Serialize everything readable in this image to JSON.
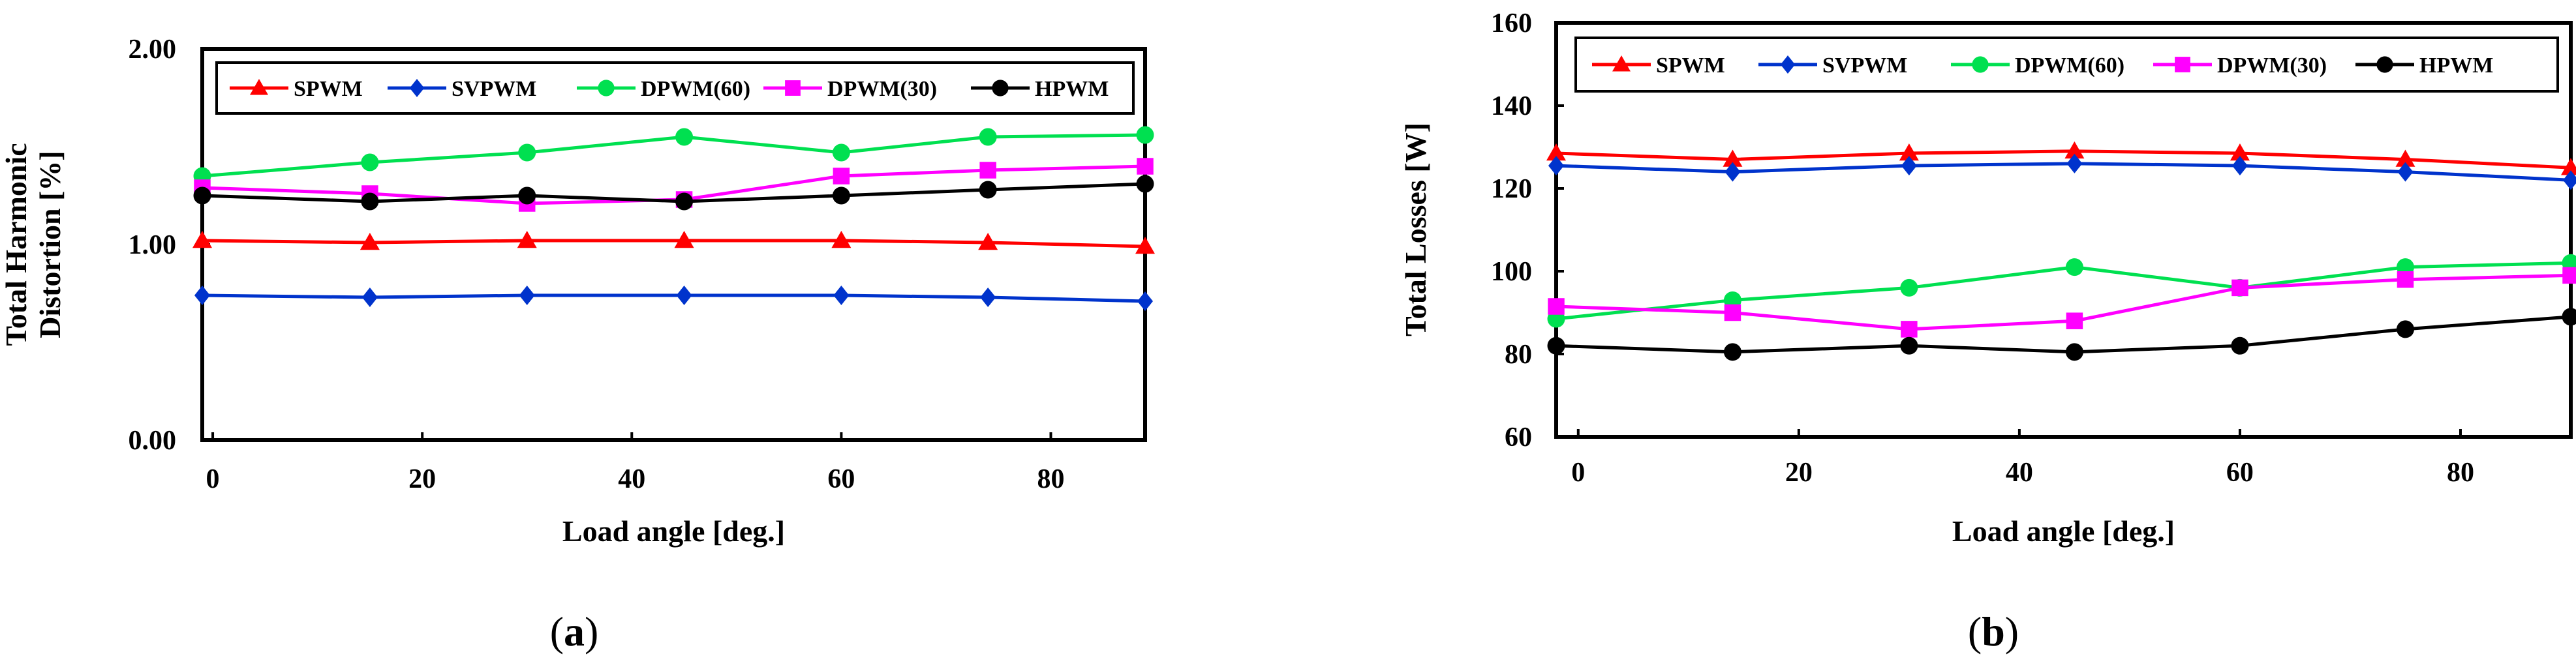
{
  "chart_data": [
    {
      "type": "line",
      "panel_label": "(a)",
      "xlabel": "Load angle [deg.]",
      "ylabel_lines": [
        "Total Harmonic",
        "Distortion [%]"
      ],
      "xlim": [
        -1,
        89
      ],
      "ylim": [
        0,
        2
      ],
      "xticks": [
        0,
        20,
        40,
        60,
        80
      ],
      "yticks": [
        0,
        1,
        2
      ],
      "ytick_labels": [
        "0.00",
        "1.00",
        "2.00"
      ],
      "grid": false,
      "legend": "top",
      "x": [
        -1,
        15,
        30,
        45,
        60,
        74,
        89
      ],
      "series": [
        {
          "name": "SPWM",
          "color": "#ff0000",
          "marker": "triangle",
          "values": [
            1.02,
            1.01,
            1.02,
            1.02,
            1.02,
            1.01,
            0.99
          ]
        },
        {
          "name": "SVPWM",
          "color": "#0033cc",
          "marker": "diamond",
          "values": [
            0.74,
            0.73,
            0.74,
            0.74,
            0.74,
            0.73,
            0.71
          ]
        },
        {
          "name": "DPWM(60)",
          "color": "#00e050",
          "marker": "circle",
          "values": [
            1.35,
            1.42,
            1.47,
            1.55,
            1.47,
            1.55,
            1.56
          ]
        },
        {
          "name": "DPWM(30)",
          "color": "#ff00ff",
          "marker": "square",
          "values": [
            1.29,
            1.26,
            1.21,
            1.23,
            1.35,
            1.38,
            1.4
          ]
        },
        {
          "name": "HPWM",
          "color": "#000000",
          "marker": "circle",
          "values": [
            1.25,
            1.22,
            1.25,
            1.22,
            1.25,
            1.28,
            1.31
          ]
        }
      ]
    },
    {
      "type": "line",
      "panel_label": "(b)",
      "xlabel": "Load angle [deg.]",
      "ylabel_lines": [
        "Total Losses [W]"
      ],
      "xlim": [
        -2,
        90
      ],
      "ylim": [
        60,
        160
      ],
      "xticks": [
        0,
        20,
        40,
        60,
        80
      ],
      "yticks": [
        60,
        80,
        100,
        120,
        140,
        160
      ],
      "ytick_labels": [
        "60",
        "80",
        "100",
        "120",
        "140",
        "160"
      ],
      "grid": false,
      "legend": "top",
      "x": [
        -2,
        14,
        30,
        45,
        60,
        75,
        90
      ],
      "series": [
        {
          "name": "SPWM",
          "color": "#ff0000",
          "marker": "triangle",
          "values": [
            128.5,
            127,
            128.5,
            129,
            128.5,
            127,
            125
          ]
        },
        {
          "name": "SVPWM",
          "color": "#0033cc",
          "marker": "diamond",
          "values": [
            125.5,
            124,
            125.5,
            126,
            125.5,
            124,
            122
          ]
        },
        {
          "name": "DPWM(60)",
          "color": "#00e050",
          "marker": "circle",
          "values": [
            88.5,
            93,
            96,
            101,
            96,
            101,
            102
          ]
        },
        {
          "name": "DPWM(30)",
          "color": "#ff00ff",
          "marker": "square",
          "values": [
            91.5,
            90,
            86,
            88,
            96,
            98,
            99
          ]
        },
        {
          "name": "HPWM",
          "color": "#000000",
          "marker": "circle",
          "values": [
            82,
            80.5,
            82,
            80.5,
            82,
            86,
            89
          ]
        }
      ]
    }
  ]
}
